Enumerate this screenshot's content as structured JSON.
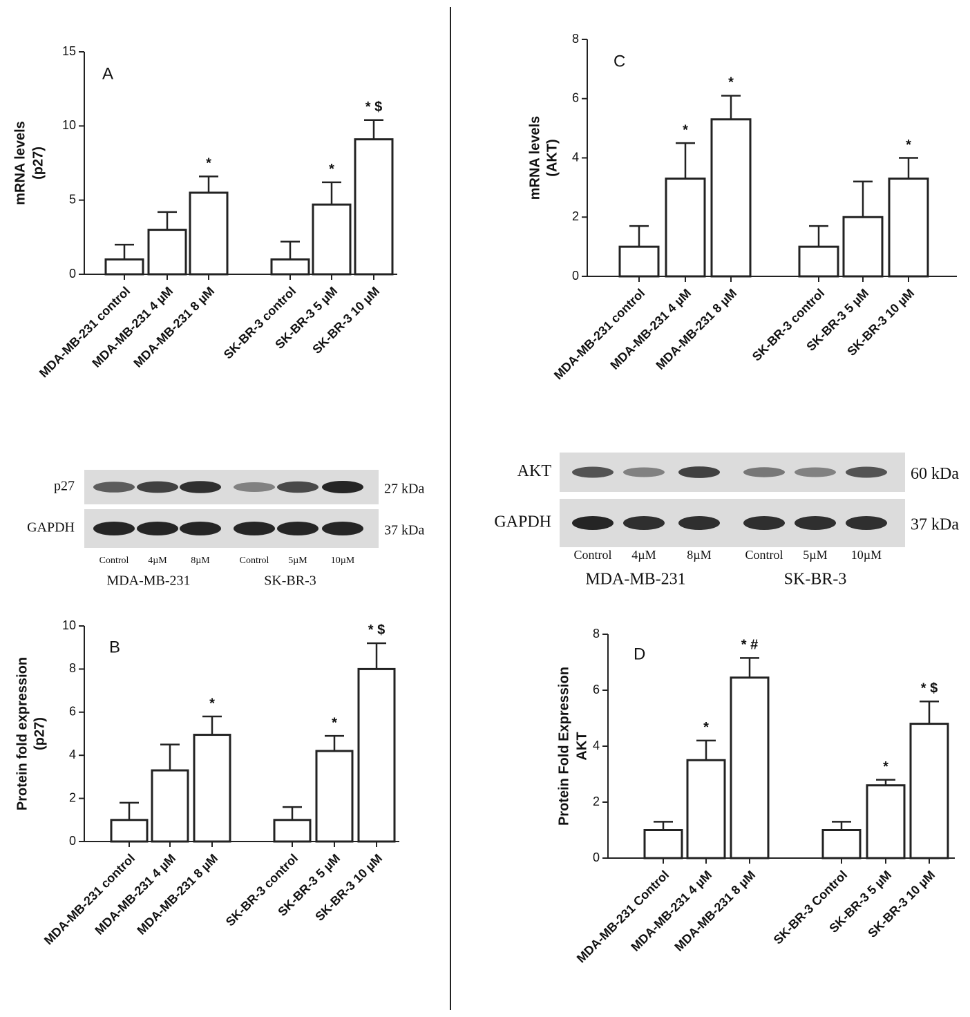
{
  "chart_data": [
    {
      "type": "bar",
      "panel": "A",
      "ylabel": [
        "mRNA levels",
        "(p27)"
      ],
      "categories": [
        "MDA-MB-231 control",
        "MDA-MB-231 4 µM",
        "MDA-MB-231 8 µM",
        "SK-BR-3 control",
        "SK-BR-3 5 µM",
        "SK-BR-3 10 µM"
      ],
      "values": [
        1,
        3,
        5.5,
        1,
        4.7,
        9.1
      ],
      "errors": [
        1,
        1.2,
        1.1,
        1.2,
        1.5,
        1.3
      ],
      "annotations": [
        null,
        null,
        "*",
        null,
        "*",
        "* $"
      ],
      "ylim": [
        0,
        15
      ],
      "yticks": [
        0,
        5,
        10,
        15
      ],
      "color": "#ffffff"
    },
    {
      "type": "bar",
      "panel": "B",
      "ylabel": [
        "Protein fold expression",
        "(p27)"
      ],
      "categories": [
        "MDA-MB-231 control",
        "MDA-MB-231 4 µM",
        "MDA-MB-231 8 µM",
        "SK-BR-3 control",
        "SK-BR-3 5 µM",
        "SK-BR-3 10 µM"
      ],
      "values": [
        1,
        3.3,
        4.95,
        1,
        4.2,
        8
      ],
      "errors": [
        0.8,
        1.2,
        0.85,
        0.6,
        0.7,
        1.2
      ],
      "annotations": [
        null,
        null,
        "*",
        null,
        "*",
        "* $"
      ],
      "ylim": [
        0,
        10
      ],
      "yticks": [
        0,
        2,
        4,
        6,
        8,
        10
      ],
      "color": "#ffffff"
    },
    {
      "type": "bar",
      "panel": "C",
      "ylabel": [
        "mRNA levels",
        "(AKT)"
      ],
      "categories": [
        "MDA-MB-231 control",
        "MDA-MB-231 4 µM",
        "MDA-MB-231 8 µM",
        "SK-BR-3 control",
        "SK-BR-3 5 µM",
        "SK-BR-3 10 µM"
      ],
      "values": [
        1,
        3.3,
        5.3,
        1,
        2,
        3.3
      ],
      "errors": [
        0.7,
        1.2,
        0.8,
        0.7,
        1.2,
        0.7
      ],
      "annotations": [
        null,
        "*",
        "*",
        null,
        null,
        "*"
      ],
      "ylim": [
        0,
        8
      ],
      "yticks": [
        0,
        2,
        4,
        6,
        8
      ],
      "color": "#ffffff"
    },
    {
      "type": "bar",
      "panel": "D",
      "ylabel": [
        "Protein Fold Expression",
        "AKT"
      ],
      "categories": [
        "MDA-MB-231 Control",
        "MDA-MB-231 4 µM",
        "MDA-MB-231 8 µM",
        "SK-BR-3 Control",
        "SK-BR-3 5 µM",
        "SK-BR-3 10 µM"
      ],
      "values": [
        1,
        3.5,
        6.45,
        1,
        2.6,
        4.8
      ],
      "errors": [
        0.3,
        0.7,
        0.7,
        0.3,
        0.2,
        0.8
      ],
      "annotations": [
        null,
        "*",
        "* #",
        null,
        "*",
        "* $"
      ],
      "ylim": [
        0,
        8
      ],
      "yticks": [
        0,
        2,
        4,
        6,
        8
      ],
      "color": "#ffffff"
    }
  ],
  "blots": [
    {
      "rows": [
        {
          "protein": "p27",
          "size": "27 kDa"
        },
        {
          "protein": "GAPDH",
          "size": "37 kDa"
        }
      ],
      "lanes": [
        "Control",
        "4µM",
        "8µM",
        "Control",
        "5µM",
        "10µM"
      ],
      "groups": [
        "MDA-MB-231",
        "SK-BR-3"
      ]
    },
    {
      "rows": [
        {
          "protein": "AKT",
          "size": "60 kDa"
        },
        {
          "protein": "GAPDH",
          "size": "37 kDa"
        }
      ],
      "lanes": [
        "Control",
        "4µM",
        "8µM",
        "Control",
        "5µM",
        "10µM"
      ],
      "groups": [
        "MDA-MB-231",
        "SK-BR-3"
      ]
    }
  ]
}
